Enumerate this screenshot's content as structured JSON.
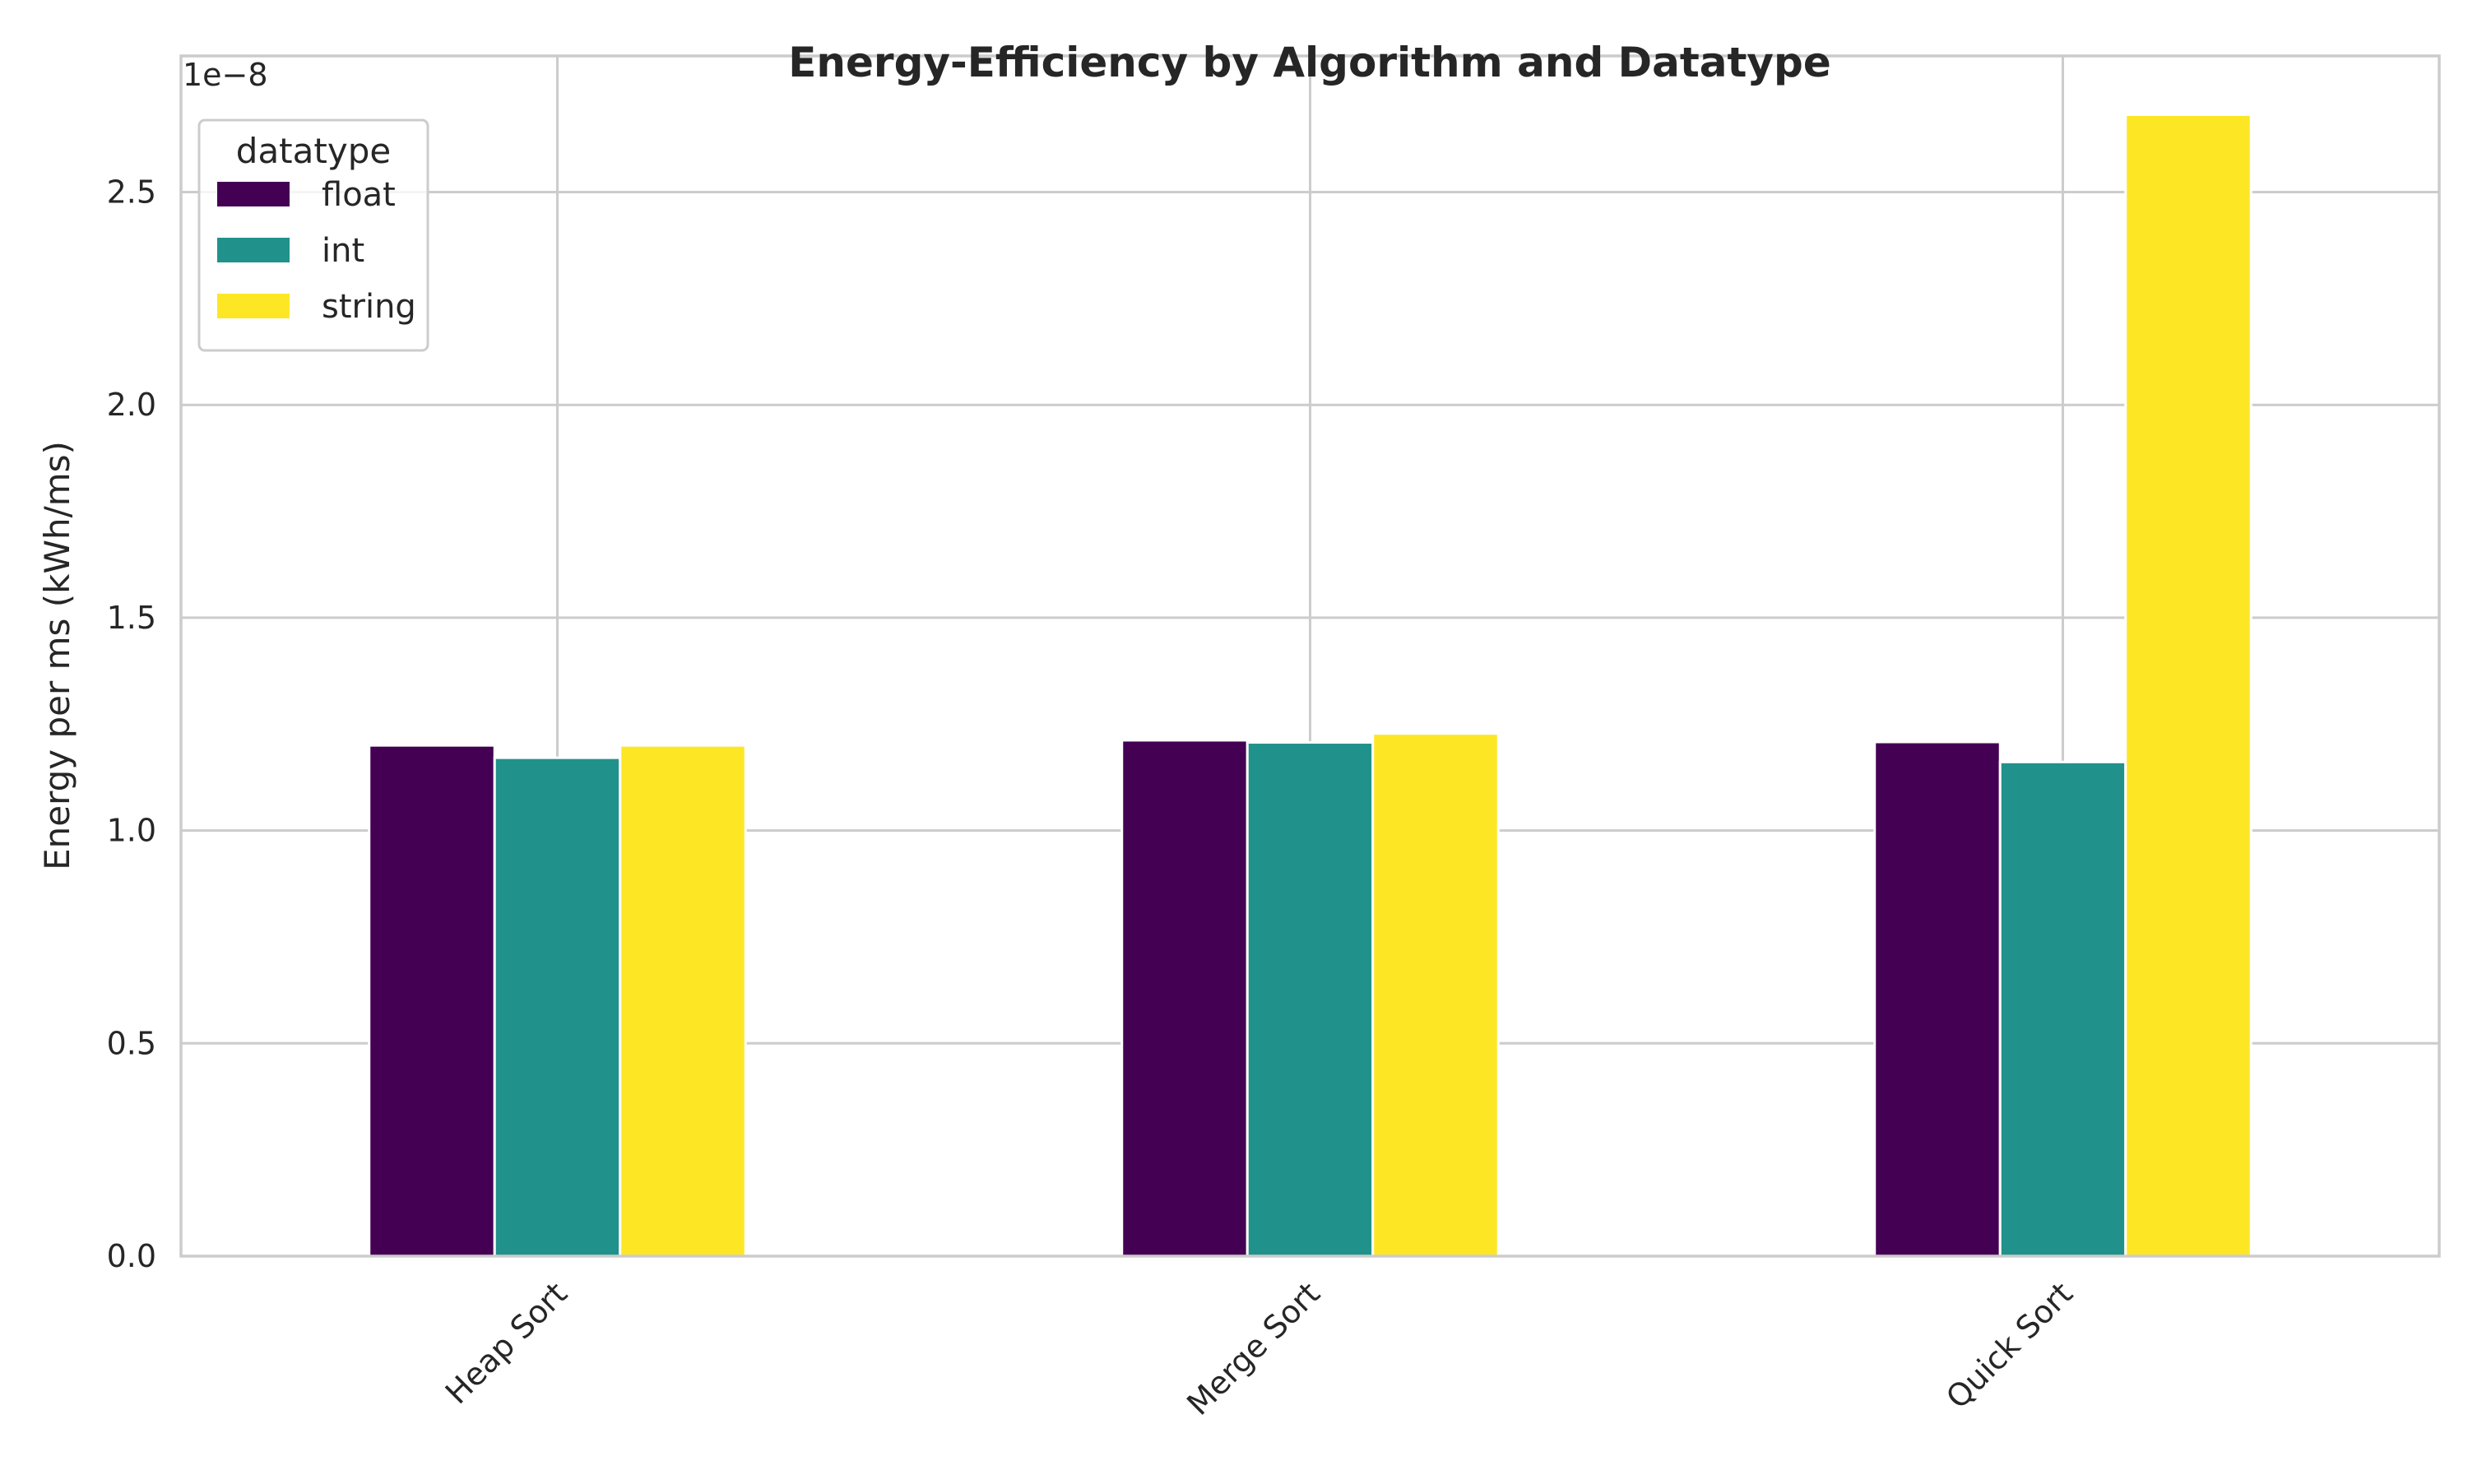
{
  "chart_data": {
    "type": "bar",
    "title": "Energy-Efficiency by Algorithm and Datatype",
    "xlabel": "",
    "ylabel": "Energy per ms (kWh/ms)",
    "y_offset_label": "1e−8",
    "categories": [
      "Heap Sort",
      "Merge Sort",
      "Quick Sort"
    ],
    "series": [
      {
        "name": "float",
        "color": "#440154",
        "values": [
          1.2,
          1.212,
          1.208
        ]
      },
      {
        "name": "int",
        "color": "#21918c",
        "values": [
          1.171,
          1.207,
          1.161
        ]
      },
      {
        "name": "string",
        "color": "#fde725",
        "values": [
          1.2,
          1.228,
          2.682
        ]
      }
    ],
    "ylim": [
      0,
      2.82
    ],
    "yticks": [
      0.0,
      0.5,
      1.0,
      1.5,
      2.0,
      2.5
    ],
    "ytick_labels": [
      "0.0",
      "0.5",
      "1.0",
      "1.5",
      "2.0",
      "2.5"
    ],
    "legend": {
      "title": "datatype",
      "placement": "top-left"
    },
    "grid": true
  }
}
